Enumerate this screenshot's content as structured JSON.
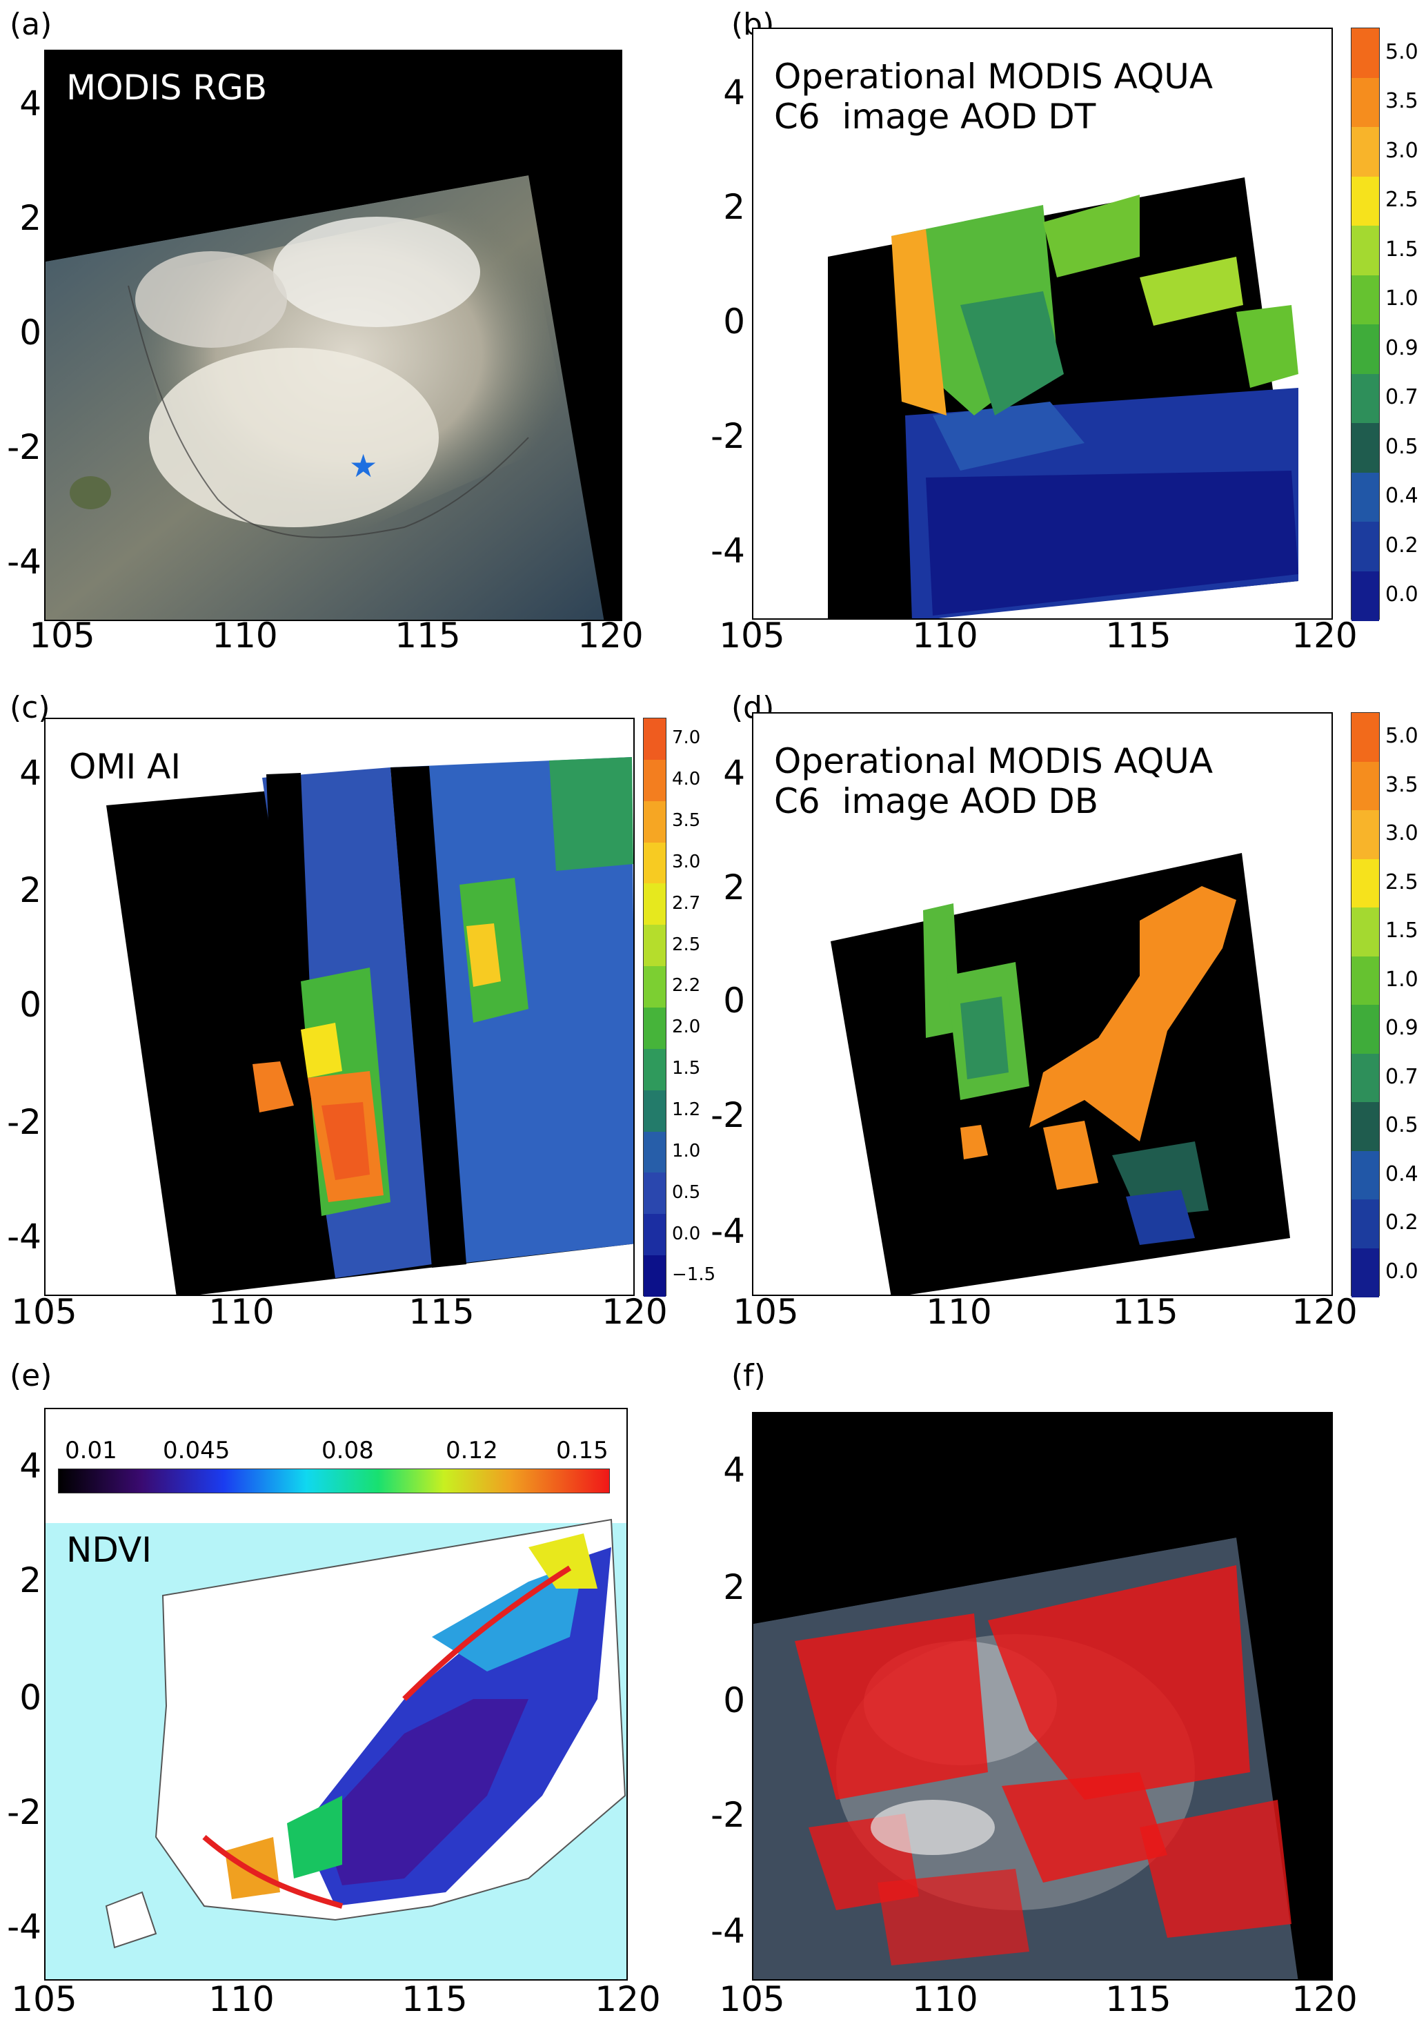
{
  "panels": {
    "a": {
      "label": "(a)",
      "title": "MODIS RGB",
      "x_ticks": [
        "105",
        "110",
        "115",
        "120"
      ],
      "y_ticks": [
        "4",
        "2",
        "0",
        "-2",
        "-4"
      ]
    },
    "b": {
      "label": "(b)",
      "title_line1": "Operational MODIS AQUA",
      "title_line2": "C6  image AOD DT",
      "x_ticks": [
        "105",
        "110",
        "115",
        "120"
      ],
      "y_ticks": [
        "4",
        "2",
        "0",
        "-2",
        "-4"
      ],
      "colorbar": [
        "5.0",
        "3.5",
        "3.0",
        "2.5",
        "1.5",
        "1.0",
        "0.9",
        "0.7",
        "0.5",
        "0.4",
        "0.2",
        "0.0"
      ]
    },
    "c": {
      "label": "(c)",
      "title": "OMI AI",
      "x_ticks": [
        "105",
        "110",
        "115",
        "120"
      ],
      "y_ticks": [
        "4",
        "2",
        "0",
        "-2",
        "-4"
      ],
      "colorbar": [
        "7.0",
        "4.0",
        "3.5",
        "3.0",
        "2.7",
        "2.5",
        "2.2",
        "2.0",
        "1.5",
        "1.2",
        "1.0",
        "0.5",
        "0.0",
        "−1.5"
      ]
    },
    "d": {
      "label": "(d)",
      "title_line1": "Operational MODIS AQUA",
      "title_line2": "C6  image AOD DB",
      "x_ticks": [
        "105",
        "110",
        "115",
        "120"
      ],
      "y_ticks": [
        "4",
        "2",
        "0",
        "-2",
        "-4"
      ],
      "colorbar": [
        "5.0",
        "3.5",
        "3.0",
        "2.5",
        "1.5",
        "1.0",
        "0.9",
        "0.7",
        "0.5",
        "0.4",
        "0.2",
        "0.0"
      ]
    },
    "e": {
      "label": "(e)",
      "title": "NDVI",
      "x_ticks": [
        "105",
        "110",
        "115",
        "120"
      ],
      "y_ticks": [
        "4",
        "2",
        "0",
        "-2",
        "-4"
      ],
      "colorbar": [
        "0.01",
        "0.045",
        "0.08",
        "0.12",
        "0.15"
      ]
    },
    "f": {
      "label": "(f)",
      "x_ticks": [
        "105",
        "110",
        "115",
        "120"
      ],
      "y_ticks": [
        "4",
        "2",
        "0",
        "-2",
        "-4"
      ]
    }
  },
  "colors": {
    "aod_scale": [
      "#f26a1b",
      "#f58d1e",
      "#f8b42a",
      "#f6e21c",
      "#a4d930",
      "#66c230",
      "#3fac3a",
      "#2e8f5a",
      "#1f5c4e",
      "#2157a7",
      "#1c3c9e",
      "#121d8e"
    ],
    "omi_scale": [
      "#ef5c1f",
      "#f37e1f",
      "#f6a623",
      "#f7cb22",
      "#e6e81e",
      "#b5dd2c",
      "#7ccf32",
      "#46b43a",
      "#2f9a5c",
      "#237b6a",
      "#275ea9",
      "#2a47ae",
      "#1b2ea2",
      "#0c118a"
    ],
    "star": "#1e6fe0",
    "fire": "#f01818",
    "ocean_ndvi": "#b6f4f8"
  }
}
